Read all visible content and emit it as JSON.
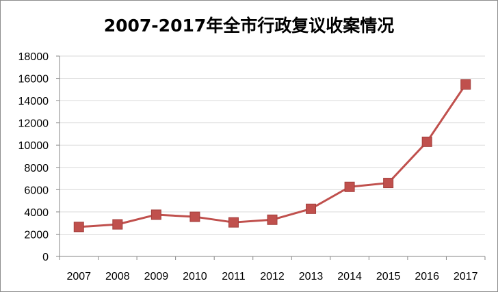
{
  "chart_data": {
    "type": "line",
    "title": "2007-2017年全市行政复议收案情况",
    "xlabel": "",
    "ylabel": "",
    "categories": [
      "2007",
      "2008",
      "2009",
      "2010",
      "2011",
      "2012",
      "2013",
      "2014",
      "2015",
      "2016",
      "2017"
    ],
    "series": [
      {
        "values": [
          2650,
          2880,
          3750,
          3560,
          3060,
          3300,
          4280,
          6250,
          6600,
          10300,
          15450
        ]
      }
    ],
    "ylim": [
      0,
      18000
    ],
    "yticks": [
      "0",
      "2000",
      "4000",
      "6000",
      "8000",
      "10000",
      "12000",
      "14000",
      "16000",
      "18000"
    ],
    "grid": true,
    "legend": "none",
    "colors": {
      "line": "#C0504D",
      "marker": "#C0504D",
      "grid": "#D9D9D9",
      "axis": "#868686"
    },
    "marker": "square"
  }
}
